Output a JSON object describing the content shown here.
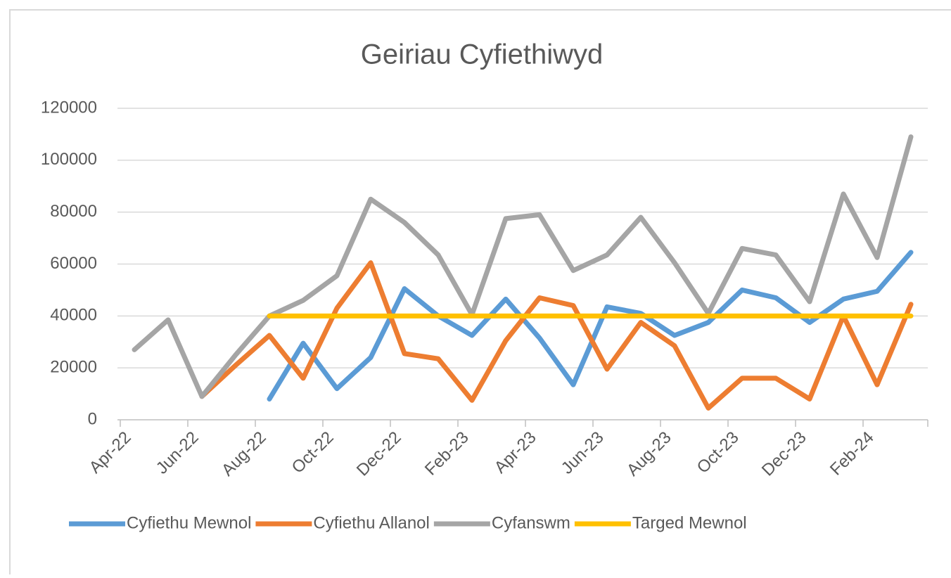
{
  "chart_data": {
    "type": "line",
    "title": "Geiriau Cyfiethiwyd",
    "categories": [
      "Apr-22",
      null,
      "Jun-22",
      null,
      "Aug-22",
      null,
      "Oct-22",
      null,
      "Dec-22",
      null,
      "Feb-23",
      null,
      "Apr-23",
      null,
      "Jun-23",
      null,
      "Aug-23",
      null,
      "Oct-23",
      null,
      "Dec-23",
      null,
      "Feb-24",
      null
    ],
    "series": [
      {
        "name": "Cyfiethu Mewnol",
        "color": "#5b9bd5",
        "values": [
          null,
          null,
          null,
          null,
          8000,
          29500,
          12000,
          24000,
          50500,
          40000,
          32500,
          46500,
          31500,
          13500,
          43500,
          41000,
          32500,
          37500,
          50000,
          47000,
          37500,
          46500,
          49500,
          64500
        ]
      },
      {
        "name": "Cyfiethu Allanol",
        "color": "#ed7d31",
        "values": [
          null,
          null,
          9000,
          21000,
          32500,
          16000,
          43000,
          60500,
          25500,
          23500,
          7500,
          30500,
          47000,
          44000,
          19500,
          37500,
          28500,
          4500,
          16000,
          16000,
          8000,
          40000,
          13500,
          44500
        ]
      },
      {
        "name": "Cyfanswm",
        "color": "#a5a5a5",
        "values": [
          27000,
          38500,
          9000,
          25000,
          40000,
          46000,
          55500,
          85000,
          76000,
          63500,
          40500,
          77500,
          79000,
          57500,
          63500,
          78000,
          60500,
          41000,
          66000,
          63500,
          45500,
          87000,
          62500,
          109000
        ]
      },
      {
        "name": "Targed Mewnol",
        "color": "#ffc000",
        "values": [
          null,
          null,
          null,
          null,
          40000,
          40000,
          40000,
          40000,
          40000,
          40000,
          40000,
          40000,
          40000,
          40000,
          40000,
          40000,
          40000,
          40000,
          40000,
          40000,
          40000,
          40000,
          40000,
          40000
        ]
      }
    ],
    "ylim": [
      0,
      120000
    ],
    "yticks": [
      0,
      20000,
      40000,
      60000,
      80000,
      100000,
      120000
    ],
    "grid": true,
    "legend": "bottom"
  }
}
